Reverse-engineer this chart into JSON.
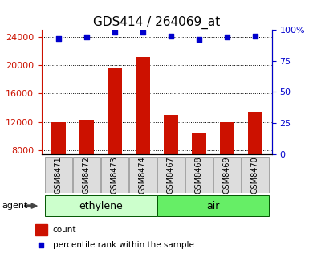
{
  "title": "GDS414 / 264069_at",
  "samples": [
    "GSM8471",
    "GSM8472",
    "GSM8473",
    "GSM8474",
    "GSM8467",
    "GSM8468",
    "GSM8469",
    "GSM8470"
  ],
  "counts": [
    12000,
    12300,
    19700,
    21200,
    13000,
    10500,
    12000,
    13500
  ],
  "percentiles": [
    93,
    94,
    98,
    98,
    95,
    92,
    94,
    95
  ],
  "groups": [
    {
      "label": "ethylene",
      "start": 0,
      "end": 4,
      "color": "#ccffcc"
    },
    {
      "label": "air",
      "start": 4,
      "end": 8,
      "color": "#66ee66"
    }
  ],
  "ylim_left": [
    7500,
    25000
  ],
  "yticks_left": [
    8000,
    12000,
    16000,
    20000,
    24000
  ],
  "ylim_right": [
    0,
    100
  ],
  "yticks_right": [
    0,
    25,
    50,
    75,
    100
  ],
  "bar_color": "#cc1100",
  "dot_color": "#0000cc",
  "bar_width": 0.5,
  "background_color": "#ffffff",
  "legend_count_label": "count",
  "legend_percentile_label": "percentile rank within the sample",
  "agent_label": "agent",
  "tick_label_color_left": "#cc1100",
  "tick_label_color_right": "#0000cc",
  "title_fontsize": 11,
  "tick_fontsize": 8,
  "sample_fontsize": 7,
  "legend_fontsize": 7.5,
  "group_label_fontsize": 9,
  "agent_fontsize": 8
}
